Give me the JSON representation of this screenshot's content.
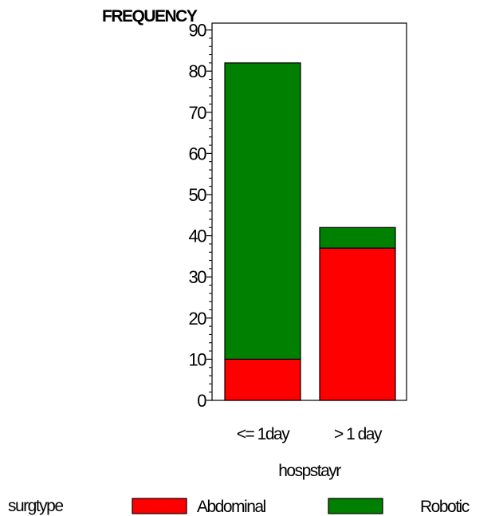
{
  "chart_data": {
    "type": "bar",
    "stacked": true,
    "ylabel": "FREQUENCY",
    "xlabel": "hospstayr",
    "categories": [
      "<= 1day",
      "> 1 day"
    ],
    "series": [
      {
        "name": "Abdominal",
        "values": [
          10,
          37
        ],
        "color": "#ff0000"
      },
      {
        "name": "Robotic",
        "values": [
          72,
          5
        ],
        "color": "#008000"
      }
    ],
    "ylim": [
      0,
      95
    ],
    "yticks": [
      "0",
      "10",
      "20",
      "30",
      "40",
      "50",
      "60",
      "70",
      "80",
      "90"
    ],
    "legend": {
      "title": "surgtype",
      "placement": "bottom"
    },
    "grid": false
  }
}
